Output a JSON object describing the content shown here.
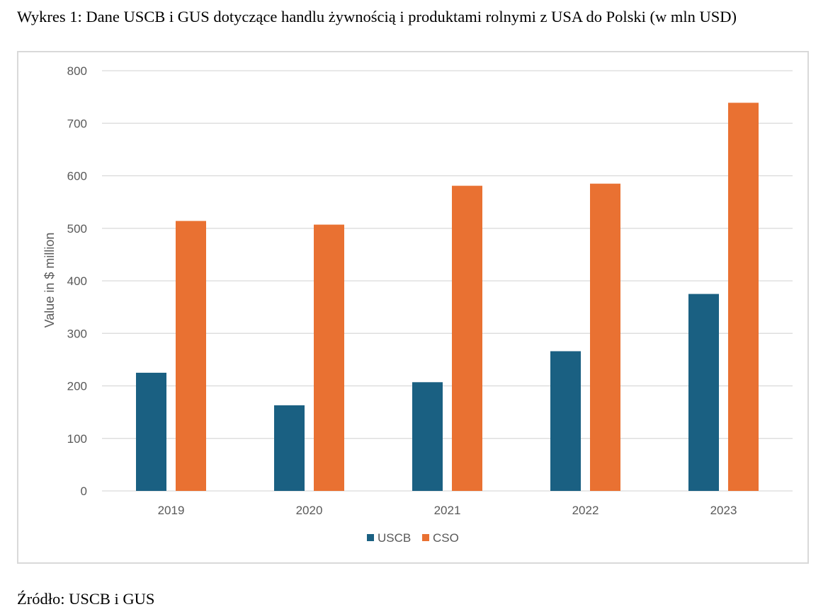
{
  "caption": "Wykres 1: Dane USCB i GUS dotyczące handlu żywnością i produktami rolnymi z USA do Polski (w mln USD)",
  "source": "Źródło: USCB i GUS",
  "chart_data": {
    "type": "bar",
    "title": "",
    "xlabel": "",
    "ylabel": "Value in $ million",
    "categories": [
      "2019",
      "2020",
      "2021",
      "2022",
      "2023"
    ],
    "series": [
      {
        "name": "USCB",
        "color": "#1a6082",
        "values": [
          225,
          163,
          207,
          266,
          375
        ]
      },
      {
        "name": "CSO",
        "color": "#e97132",
        "values": [
          514,
          507,
          581,
          585,
          739
        ]
      }
    ],
    "ylim": [
      0,
      800
    ],
    "yticks": [
      0,
      100,
      200,
      300,
      400,
      500,
      600,
      700,
      800
    ],
    "grid": true,
    "legend": "bottom"
  }
}
